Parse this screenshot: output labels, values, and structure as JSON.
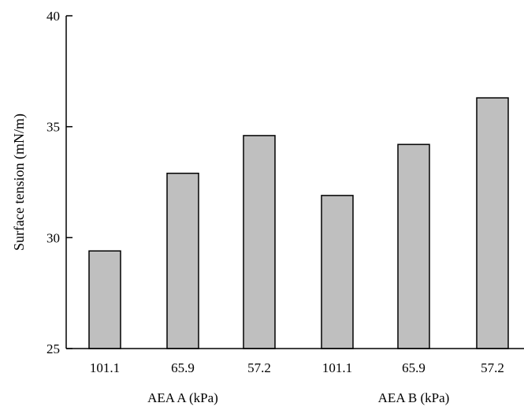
{
  "chart_data": {
    "type": "bar",
    "categories": [
      "101.1",
      "65.9",
      "57.2",
      "101.1",
      "65.9",
      "57.2"
    ],
    "groups": [
      {
        "label": "AEA A (kPa)",
        "categories": [
          "101.1",
          "65.9",
          "57.2"
        ]
      },
      {
        "label": "AEA B (kPa)",
        "categories": [
          "101.1",
          "65.9",
          "57.2"
        ]
      }
    ],
    "values": [
      29.4,
      32.9,
      34.6,
      31.9,
      34.2,
      36.3
    ],
    "ylabel": "Surface tension (mN/m)",
    "xlabel": "",
    "ylim": [
      25,
      40
    ],
    "yticks": [
      25,
      30,
      35,
      40
    ],
    "grid": false,
    "bar_fill": "#bfbfbf",
    "bar_stroke": "#000000"
  }
}
